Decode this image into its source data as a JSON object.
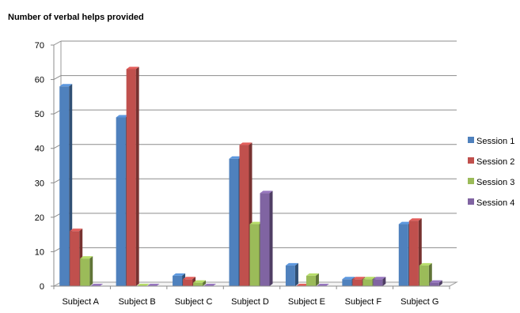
{
  "chart_data": {
    "type": "bar",
    "title": "Number of verbal helps provided",
    "xlabel": "",
    "ylabel": "",
    "ylim": [
      0,
      70
    ],
    "yticks": [
      0,
      10,
      20,
      30,
      40,
      50,
      60,
      70
    ],
    "grid": true,
    "legend_position": "right",
    "categories": [
      "Subject A",
      "Subject B",
      "Subject C",
      "Subject D",
      "Subject E",
      "Subject F",
      "Subject G"
    ],
    "series": [
      {
        "name": "Session 1",
        "color": "#4f81bd",
        "values": [
          58,
          49,
          3,
          37,
          6,
          2,
          18
        ]
      },
      {
        "name": "Session 2",
        "color": "#c0504d",
        "values": [
          16,
          63,
          2,
          41,
          0,
          2,
          19
        ]
      },
      {
        "name": "Session 3",
        "color": "#9bbb59",
        "values": [
          8,
          0,
          1,
          18,
          3,
          2,
          6
        ]
      },
      {
        "name": "Session 4",
        "color": "#8064a2",
        "values": [
          0,
          0,
          0,
          27,
          0,
          2,
          1
        ]
      }
    ]
  }
}
